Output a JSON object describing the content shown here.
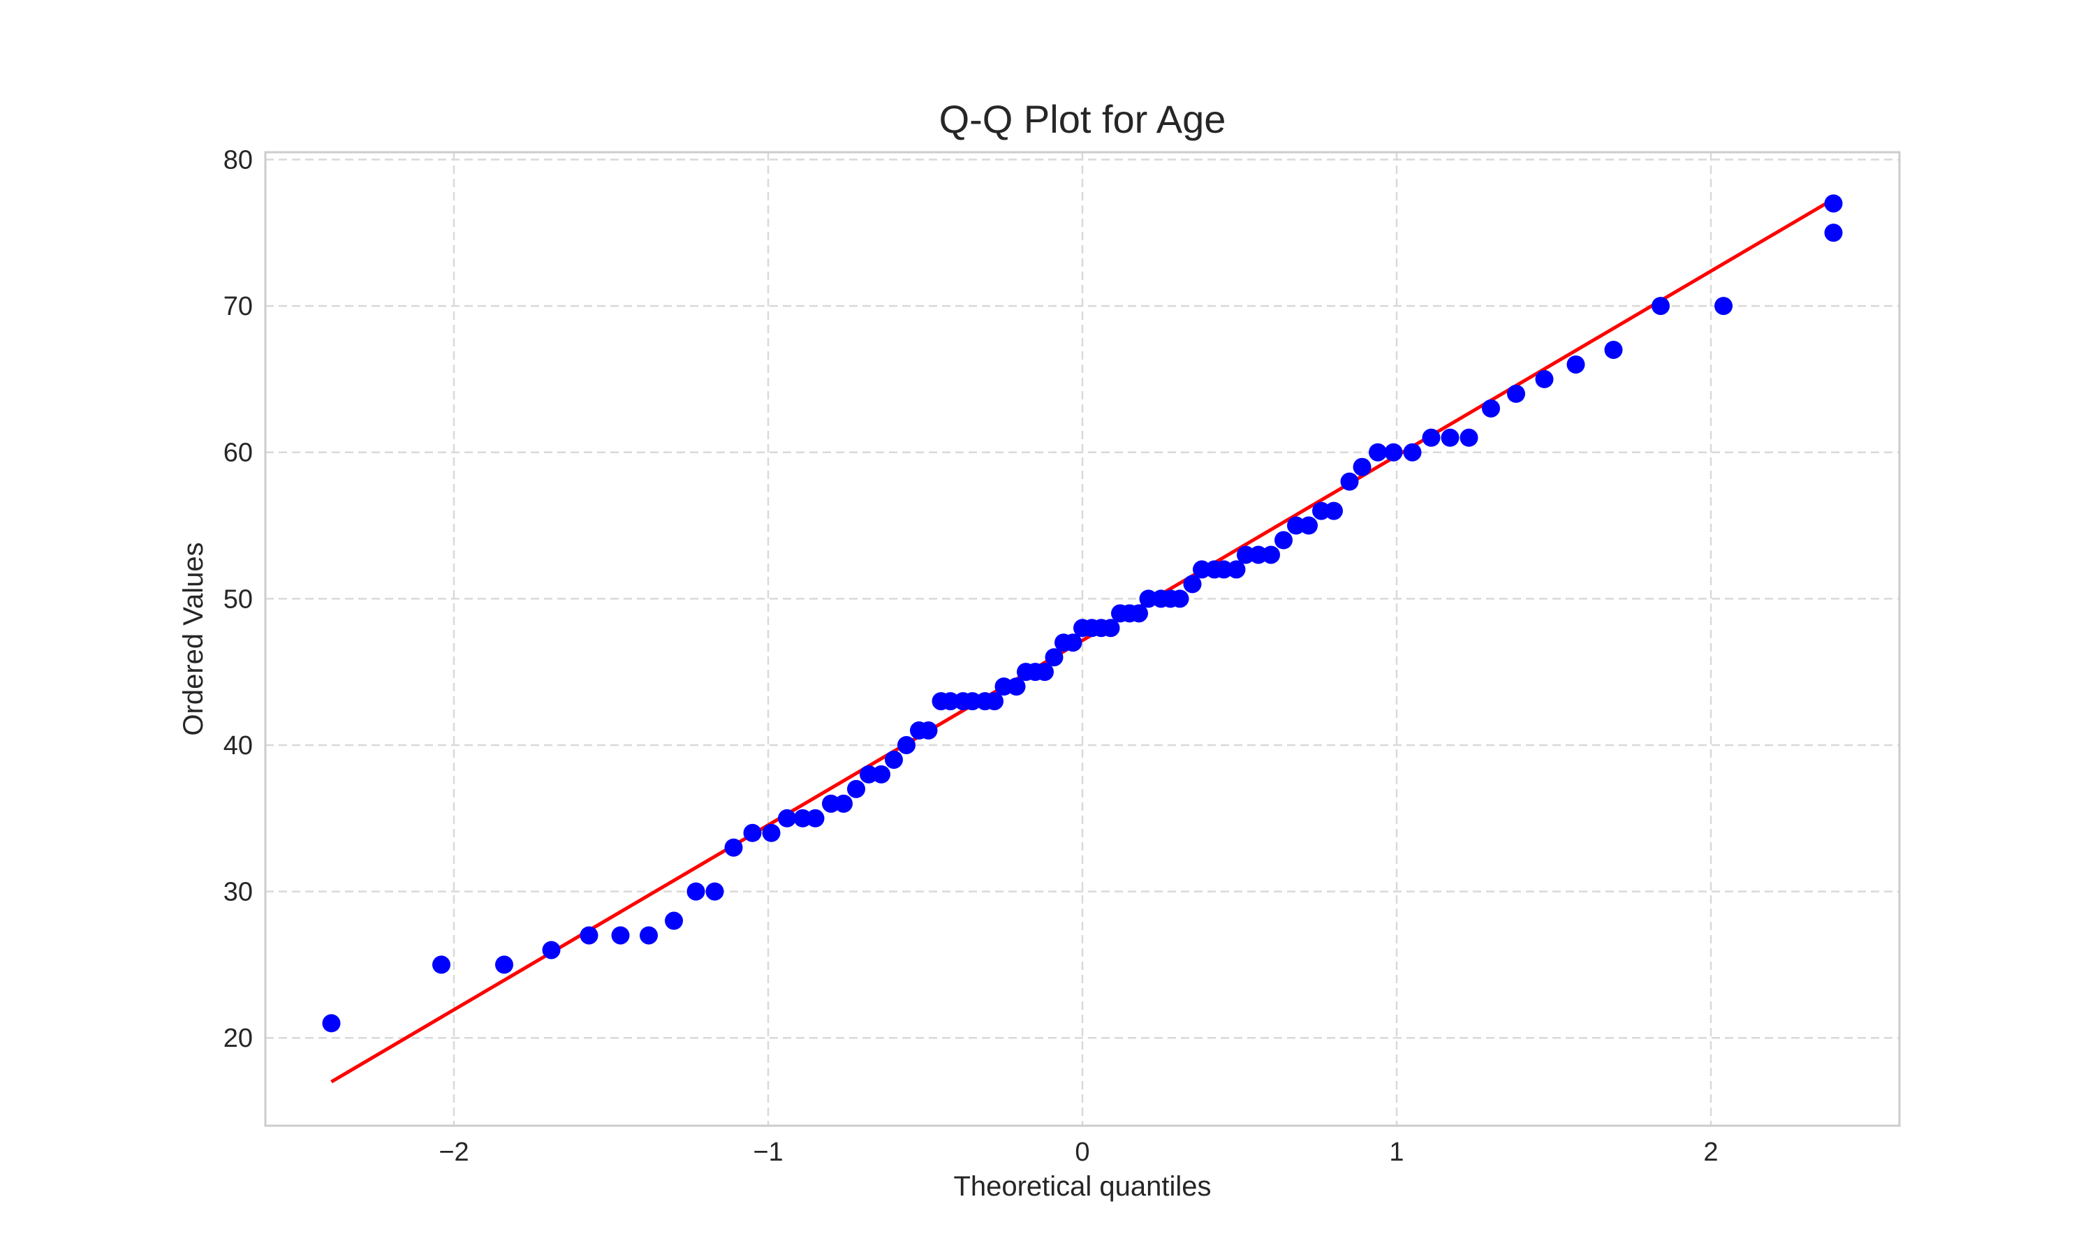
{
  "chart_data": {
    "type": "scatter",
    "title": "Q-Q Plot for Age",
    "xlabel": "Theoretical quantiles",
    "ylabel": "Ordered Values",
    "xlim": [
      -2.6,
      2.6
    ],
    "ylim": [
      14,
      80.5
    ],
    "x_ticks": [
      -2,
      -1,
      0,
      1,
      2
    ],
    "x_tick_labels": [
      "−2",
      "−1",
      "0",
      "1",
      "2"
    ],
    "y_ticks": [
      20,
      30,
      40,
      50,
      60,
      70,
      80
    ],
    "y_tick_labels": [
      "20",
      "30",
      "40",
      "50",
      "60",
      "70",
      "80"
    ],
    "grid": true,
    "legend": "none",
    "series": [
      {
        "type": "scatter",
        "color": "#0000ff",
        "points": [
          [
            -2.39,
            21
          ],
          [
            -2.04,
            25
          ],
          [
            -1.84,
            25
          ],
          [
            -1.69,
            26
          ],
          [
            -1.57,
            27
          ],
          [
            -1.47,
            27
          ],
          [
            -1.38,
            27
          ],
          [
            -1.3,
            28
          ],
          [
            -1.23,
            30
          ],
          [
            -1.17,
            30
          ],
          [
            -1.11,
            33
          ],
          [
            -1.05,
            34
          ],
          [
            -0.99,
            34
          ],
          [
            -0.94,
            35
          ],
          [
            -0.89,
            35
          ],
          [
            -0.85,
            35
          ],
          [
            -0.8,
            36
          ],
          [
            -0.76,
            36
          ],
          [
            -0.72,
            37
          ],
          [
            -0.68,
            38
          ],
          [
            -0.64,
            38
          ],
          [
            -0.6,
            39
          ],
          [
            -0.56,
            40
          ],
          [
            -0.52,
            41
          ],
          [
            -0.49,
            41
          ],
          [
            -0.45,
            43
          ],
          [
            -0.42,
            43
          ],
          [
            -0.38,
            43
          ],
          [
            -0.35,
            43
          ],
          [
            -0.31,
            43
          ],
          [
            -0.28,
            43
          ],
          [
            -0.25,
            44
          ],
          [
            -0.21,
            44
          ],
          [
            -0.18,
            45
          ],
          [
            -0.15,
            45
          ],
          [
            -0.12,
            45
          ],
          [
            -0.09,
            46
          ],
          [
            -0.06,
            47
          ],
          [
            -0.03,
            47
          ],
          [
            0.0,
            48
          ],
          [
            0.03,
            48
          ],
          [
            0.06,
            48
          ],
          [
            0.09,
            48
          ],
          [
            0.12,
            49
          ],
          [
            0.15,
            49
          ],
          [
            0.18,
            49
          ],
          [
            0.21,
            50
          ],
          [
            0.25,
            50
          ],
          [
            0.28,
            50
          ],
          [
            0.31,
            50
          ],
          [
            0.35,
            51
          ],
          [
            0.38,
            52
          ],
          [
            0.42,
            52
          ],
          [
            0.45,
            52
          ],
          [
            0.49,
            52
          ],
          [
            0.52,
            53
          ],
          [
            0.56,
            53
          ],
          [
            0.6,
            53
          ],
          [
            0.64,
            54
          ],
          [
            0.68,
            55
          ],
          [
            0.72,
            55
          ],
          [
            0.76,
            56
          ],
          [
            0.8,
            56
          ],
          [
            0.85,
            58
          ],
          [
            0.89,
            59
          ],
          [
            0.94,
            60
          ],
          [
            0.99,
            60
          ],
          [
            1.05,
            60
          ],
          [
            1.11,
            61
          ],
          [
            1.17,
            61
          ],
          [
            1.23,
            61
          ],
          [
            1.3,
            63
          ],
          [
            1.38,
            64
          ],
          [
            1.47,
            65
          ],
          [
            1.57,
            66
          ],
          [
            1.69,
            67
          ],
          [
            1.84,
            70
          ],
          [
            2.04,
            70
          ],
          [
            2.39,
            75
          ],
          [
            2.39,
            77
          ]
        ]
      },
      {
        "type": "line",
        "color": "#ff0000",
        "points": [
          [
            -2.39,
            17
          ],
          [
            2.39,
            77.3
          ]
        ]
      }
    ]
  }
}
